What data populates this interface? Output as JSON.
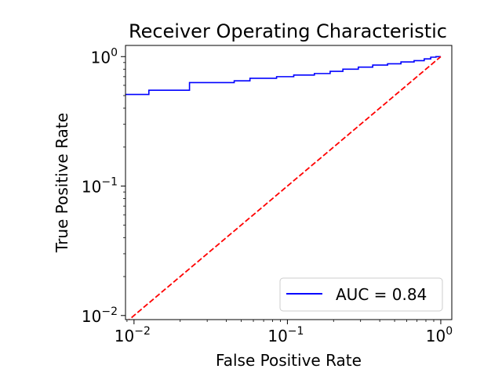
{
  "chart_data": {
    "type": "line",
    "title": "Receiver Operating Characteristic",
    "xlabel": "False Positive Rate",
    "ylabel": "True Positive Rate",
    "xscale": "log",
    "yscale": "log",
    "xlim": [
      0.0088,
      1.18
    ],
    "ylim": [
      0.0093,
      1.22
    ],
    "xticks": [
      {
        "value": 0.01,
        "base": "10",
        "exp": "−2"
      },
      {
        "value": 0.1,
        "base": "10",
        "exp": "−1"
      },
      {
        "value": 1,
        "base": "10",
        "exp": "0"
      }
    ],
    "yticks": [
      {
        "value": 0.01,
        "base": "10",
        "exp": "−2"
      },
      {
        "value": 0.1,
        "base": "10",
        "exp": "−1"
      },
      {
        "value": 1,
        "base": "10",
        "exp": "0"
      }
    ],
    "grid": false,
    "legend_position": "lower-right",
    "series": [
      {
        "name": "AUC = 0.84",
        "color": "#0000ff",
        "style": "solid",
        "x": [
          0.0088,
          0.0125,
          0.0125,
          0.023,
          0.023,
          0.045,
          0.045,
          0.057,
          0.057,
          0.085,
          0.085,
          0.11,
          0.11,
          0.15,
          0.15,
          0.19,
          0.19,
          0.23,
          0.23,
          0.29,
          0.29,
          0.36,
          0.36,
          0.45,
          0.45,
          0.55,
          0.55,
          0.67,
          0.67,
          0.78,
          0.78,
          0.86,
          0.86,
          0.93,
          0.93,
          1.0
        ],
        "y": [
          0.51,
          0.51,
          0.55,
          0.55,
          0.63,
          0.63,
          0.65,
          0.65,
          0.68,
          0.68,
          0.7,
          0.7,
          0.72,
          0.72,
          0.74,
          0.74,
          0.77,
          0.77,
          0.8,
          0.8,
          0.83,
          0.83,
          0.86,
          0.86,
          0.88,
          0.88,
          0.91,
          0.91,
          0.93,
          0.93,
          0.96,
          0.96,
          0.99,
          0.99,
          1.0,
          1.0
        ]
      },
      {
        "name": "",
        "color": "#ff0000",
        "style": "dashed",
        "x": [
          0.0088,
          1.0
        ],
        "y": [
          0.0088,
          1.0
        ]
      }
    ]
  }
}
